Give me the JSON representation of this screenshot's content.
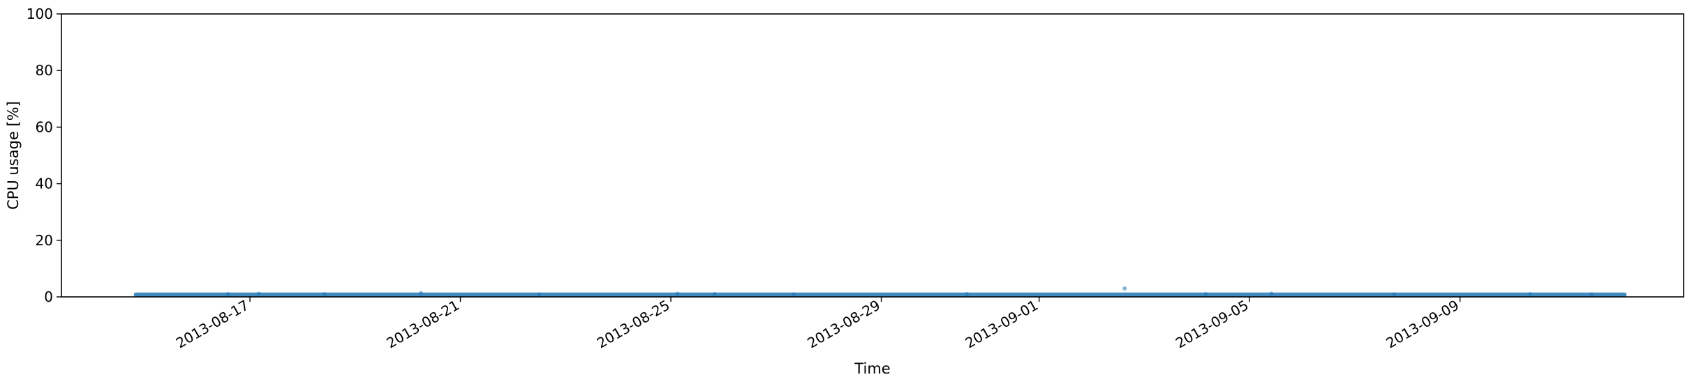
{
  "chart_data": {
    "type": "scatter",
    "title": "",
    "xlabel": "Time",
    "ylabel": "CPU usage [%]",
    "ylim": [
      0,
      100
    ],
    "xlim": [
      "2013-08-13T10:00",
      "2013-09-13T06:00"
    ],
    "yticks": [
      0,
      20,
      40,
      60,
      80,
      100
    ],
    "xticks": [
      "2013-08-17",
      "2013-08-21",
      "2013-08-25",
      "2013-08-29",
      "2013-09-01",
      "2013-09-05",
      "2013-09-09"
    ],
    "grid": false,
    "legend": "none",
    "series": [
      {
        "color": "#1f77b4",
        "x_start": "2013-08-14T19:00",
        "x_end": "2013-09-12T04:00",
        "baseline": 0.8,
        "points": [
          {
            "x": "2013-08-16T14:00",
            "y": 1.0
          },
          {
            "x": "2013-08-17T04:00",
            "y": 1.1
          },
          {
            "x": "2013-08-18T10:00",
            "y": 1.0
          },
          {
            "x": "2013-08-20T06:00",
            "y": 1.3
          },
          {
            "x": "2013-08-22T12:00",
            "y": 0.9
          },
          {
            "x": "2013-08-25T03:00",
            "y": 1.1
          },
          {
            "x": "2013-08-25T20:00",
            "y": 1.0
          },
          {
            "x": "2013-08-27T08:00",
            "y": 0.9
          },
          {
            "x": "2013-08-30T15:00",
            "y": 1.0
          },
          {
            "x": "2013-09-02T15:00",
            "y": 3.0
          },
          {
            "x": "2013-09-04T04:00",
            "y": 1.0
          },
          {
            "x": "2013-09-05T10:00",
            "y": 1.1
          },
          {
            "x": "2013-09-07T18:00",
            "y": 0.9
          },
          {
            "x": "2013-09-10T08:00",
            "y": 1.0
          },
          {
            "x": "2013-09-11T12:00",
            "y": 0.9
          }
        ]
      }
    ]
  }
}
